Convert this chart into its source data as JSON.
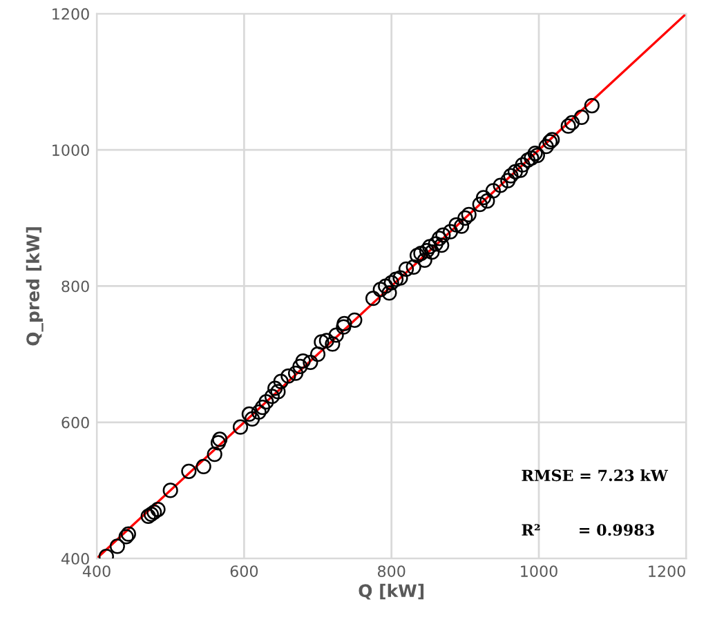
{
  "chart_data": {
    "type": "scatter",
    "xlabel": "Q [kW]",
    "ylabel": "Q_pred [kW]",
    "xlim": [
      400,
      1200
    ],
    "ylim": [
      400,
      1200
    ],
    "xticks": [
      400,
      600,
      800,
      1000,
      1200
    ],
    "yticks": [
      400,
      600,
      800,
      1000,
      1200
    ],
    "grid": true,
    "series": [
      {
        "marker": "circle",
        "color": "#000000",
        "x": [
          413,
          428,
          440,
          443,
          470,
          474,
          478,
          483,
          500,
          525,
          545,
          560,
          565,
          567,
          595,
          607,
          611,
          620,
          625,
          630,
          638,
          642,
          646,
          650,
          660,
          670,
          676,
          680,
          690,
          700,
          705,
          712,
          720,
          725,
          735,
          736,
          750,
          775,
          785,
          792,
          797,
          800,
          806,
          812,
          820,
          830,
          835,
          840,
          845,
          848,
          852,
          855,
          860,
          865,
          868,
          870,
          880,
          888,
          895,
          900,
          905,
          920,
          925,
          930,
          938,
          948,
          958,
          962,
          968,
          975,
          978,
          985,
          990,
          995,
          998,
          1010,
          1015,
          1018,
          1040,
          1045,
          1058,
          1072
        ],
        "values": [
          403,
          418,
          432,
          436,
          462,
          465,
          468,
          472,
          500,
          528,
          535,
          553,
          570,
          575,
          593,
          612,
          605,
          615,
          622,
          630,
          638,
          650,
          645,
          660,
          668,
          672,
          682,
          690,
          688,
          700,
          718,
          720,
          715,
          728,
          740,
          745,
          750,
          782,
          795,
          800,
          790,
          805,
          810,
          812,
          825,
          828,
          845,
          848,
          838,
          852,
          858,
          850,
          862,
          870,
          860,
          875,
          880,
          890,
          888,
          900,
          905,
          920,
          930,
          925,
          940,
          948,
          955,
          962,
          968,
          970,
          978,
          985,
          988,
          995,
          992,
          1005,
          1012,
          1015,
          1035,
          1040,
          1048,
          1065
        ]
      },
      {
        "type": "line",
        "color": "#ff0000",
        "x": [
          400,
          1200
        ],
        "values": [
          400,
          1200
        ]
      }
    ],
    "annotations": [
      "RMSE = 7.23 kW",
      "R²       = 0.9983"
    ]
  }
}
